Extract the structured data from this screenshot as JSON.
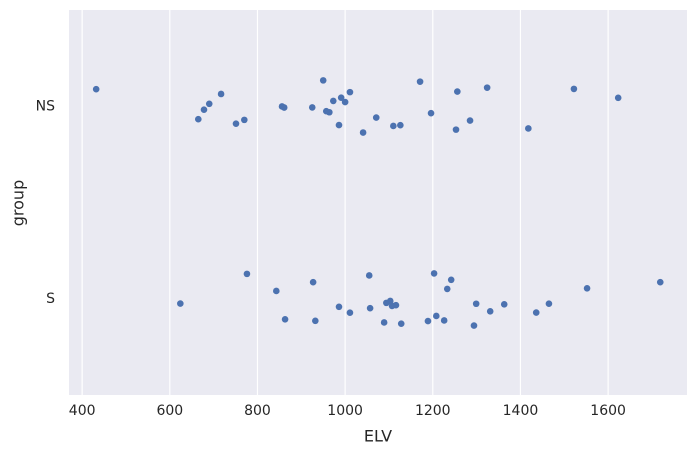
{
  "chart_data": {
    "type": "strip",
    "x_label": "ELV",
    "y_label": "group",
    "categories": [
      "NS",
      "S"
    ],
    "values": [
      [
        432,
        665,
        678,
        690,
        717,
        751,
        770,
        856,
        861,
        925,
        950,
        957,
        964,
        973,
        986,
        991,
        1000,
        1011,
        1041,
        1071,
        1110,
        1126,
        1171,
        1196,
        1253,
        1256,
        1285,
        1324,
        1418,
        1522,
        1623
      ],
      [
        624,
        776,
        843,
        863,
        927,
        932,
        986,
        1011,
        1055,
        1057,
        1089,
        1094,
        1103,
        1107,
        1116,
        1128,
        1189,
        1203,
        1208,
        1226,
        1233,
        1242,
        1294,
        1299,
        1331,
        1363,
        1436,
        1465,
        1552,
        1719
      ]
    ],
    "color": "#4c72b0",
    "xlim": [
      370,
      1780
    ],
    "xticks": [
      400,
      600,
      800,
      1000,
      1200,
      1400,
      1600
    ],
    "grid": true
  }
}
